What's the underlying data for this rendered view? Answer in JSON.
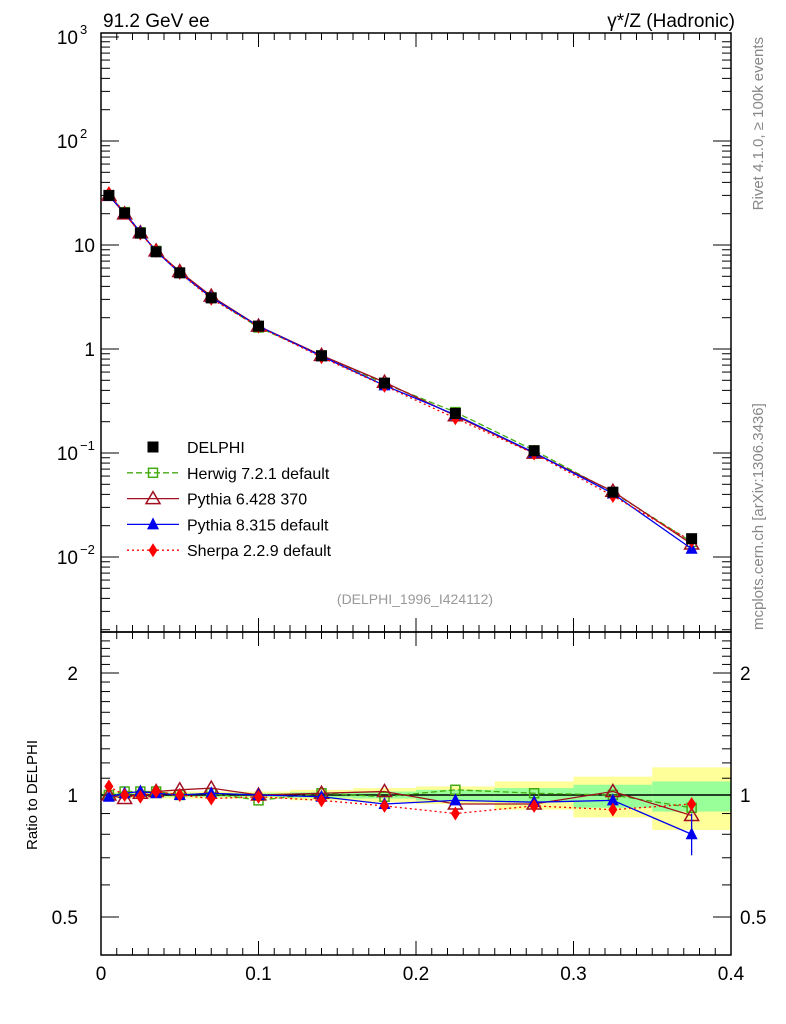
{
  "chart_data": {
    "type": "line",
    "title_left": "91.2 GeV ee",
    "title_right": "γ*/Z (Hadronic)",
    "side_text_top": "Rivet 4.1.0, ≥ 100k events",
    "side_text_bottom": "mcplots.cern.ch [arXiv:1306.3436]",
    "analysis_label": "(DELPHI_1996_I424112)",
    "ratio_ylabel": "Ratio to DELPHI",
    "xlim": [
      0,
      0.4
    ],
    "ylim_main": [
      0.002,
      1000
    ],
    "ylim_ratio": [
      0.4,
      2.5
    ],
    "yscale": "log",
    "x_ticks": [
      "0",
      "0.1",
      "0.2",
      "0.3",
      "0.4"
    ],
    "x_tick_values": [
      0,
      0.1,
      0.2,
      0.3,
      0.4
    ],
    "main_y_ticks": [
      {
        "v": 0.01,
        "base": "10",
        "exp": "−2"
      },
      {
        "v": 0.1,
        "base": "10",
        "exp": "−1"
      },
      {
        "v": 1,
        "base": "1",
        "exp": ""
      },
      {
        "v": 10,
        "base": "10",
        "exp": ""
      },
      {
        "v": 100,
        "base": "10",
        "exp": "2"
      },
      {
        "v": 1000,
        "base": "10",
        "exp": "3"
      }
    ],
    "ratio_y_ticks": [
      {
        "v": 0.5,
        "label": "0.5"
      },
      {
        "v": 1,
        "label": "1"
      },
      {
        "v": 2,
        "label": "2"
      }
    ],
    "legend_position": "center-left",
    "x": [
      0.005,
      0.015,
      0.025,
      0.035,
      0.05,
      0.07,
      0.1,
      0.14,
      0.18,
      0.225,
      0.275,
      0.325,
      0.375
    ],
    "data": {
      "name": "DELPHI",
      "color": "#000000",
      "values": [
        30,
        20.3,
        13,
        8.6,
        5.4,
        3.1,
        1.66,
        0.86,
        0.47,
        0.24,
        0.105,
        0.042,
        0.015
      ]
    },
    "bands": {
      "bin_edges": [
        0,
        0.01,
        0.02,
        0.03,
        0.04,
        0.06,
        0.08,
        0.12,
        0.16,
        0.2,
        0.25,
        0.3,
        0.35,
        0.4
      ],
      "yellow_up": [
        1.02,
        1.02,
        1.02,
        1.02,
        1.02,
        1.02,
        1.02,
        1.03,
        1.04,
        1.05,
        1.08,
        1.11,
        1.17
      ],
      "yellow_down": [
        0.98,
        0.98,
        0.98,
        0.98,
        0.98,
        0.98,
        0.98,
        0.97,
        0.96,
        0.95,
        0.92,
        0.88,
        0.82
      ],
      "green_up": [
        1.01,
        1.01,
        1.01,
        1.01,
        1.01,
        1.01,
        1.01,
        1.015,
        1.02,
        1.03,
        1.04,
        1.06,
        1.08
      ],
      "green_down": [
        0.99,
        0.99,
        0.99,
        0.99,
        0.99,
        0.99,
        0.99,
        0.985,
        0.98,
        0.97,
        0.96,
        0.93,
        0.91
      ],
      "yellow": "#ffff99",
      "green": "#99ff99"
    },
    "series": [
      {
        "name": "Herwig 7.2.1 default",
        "color": "#44aa11",
        "marker": "open-square",
        "dash": "6,3",
        "ratio": [
          1.0,
          1.02,
          1.02,
          1.02,
          1.0,
          1.01,
          0.97,
          1.01,
          0.99,
          1.03,
          1.01,
          1.0,
          0.93
        ]
      },
      {
        "name": "Pythia 6.428 370",
        "color": "#a01020",
        "marker": "open-triangle",
        "dash": "",
        "ratio": [
          1.0,
          0.98,
          1.01,
          1.02,
          1.03,
          1.04,
          1.0,
          1.01,
          1.02,
          0.95,
          0.95,
          1.02,
          0.89
        ]
      },
      {
        "name": "Pythia 8.315 default",
        "color": "#0000ee",
        "marker": "filled-triangle",
        "dash": "",
        "ratio": [
          0.99,
          1.01,
          1.02,
          1.01,
          1.0,
          1.01,
          1.0,
          0.99,
          0.95,
          0.97,
          0.96,
          0.97,
          0.8
        ]
      },
      {
        "name": "Sherpa 2.2.9 default",
        "color": "#ff0000",
        "marker": "diamond",
        "dash": "2,3",
        "ratio": [
          1.05,
          1.0,
          0.99,
          1.02,
          1.0,
          0.98,
          0.99,
          0.97,
          0.94,
          0.9,
          0.94,
          0.92,
          0.95
        ]
      }
    ]
  }
}
